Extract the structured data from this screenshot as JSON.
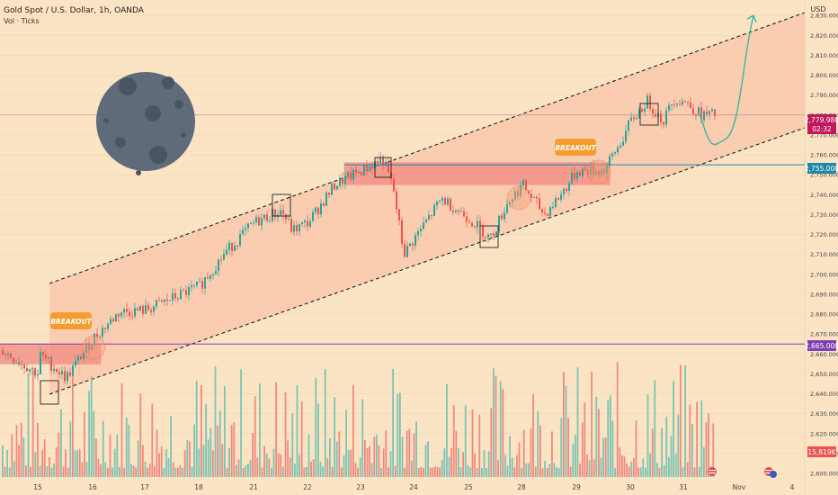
{
  "header": {
    "symbol_line": "Gold Spot / U.S. Dollar, 1h, OANDA",
    "volume_label": "Vol · Ticks"
  },
  "currency": "USD",
  "price_labels": {
    "last_price": "2,779.980",
    "countdown": "02:32",
    "resistance": "2,755.000",
    "support": "2,665.000",
    "volume_value": "15,819K"
  },
  "annotations": {
    "breakout_1": "BREAKOUT",
    "breakout_2": "BREAKOUT"
  },
  "colors": {
    "background": "#fbe4c4",
    "channel_fill": "#f9b9a0",
    "zone_fill": "#f28b82",
    "up_candle": "#26a69a",
    "down_candle": "#ef5350",
    "last_price": "#c2185b",
    "resistance_line": "#1e88a8",
    "support_line": "#7e3fb3",
    "badge": "#f59c2e",
    "moon": "#5f6b7a"
  },
  "chart_data": {
    "type": "candlestick",
    "title": "Gold Spot / U.S. Dollar, 1h, OANDA",
    "ylim": [
      2600,
      2840
    ],
    "y_ticks": [
      "2,830.000",
      "2,820.000",
      "2,810.000",
      "2,800.000",
      "2,790.000",
      "2,780.000",
      "2,770.000",
      "2,760.000",
      "2,750.000",
      "2,740.000",
      "2,730.000",
      "2,720.000",
      "2,710.000",
      "2,700.000",
      "2,690.000",
      "2,680.000",
      "2,670.000",
      "2,660.000",
      "2,650.000",
      "2,640.000",
      "2,630.000",
      "2,620.000",
      "2,610.000",
      "2,600.000"
    ],
    "x_ticks": [
      "15",
      "16",
      "17",
      "18",
      "21",
      "22",
      "23",
      "24",
      "25",
      "28",
      "29",
      "30",
      "31",
      "Nov",
      "4"
    ],
    "last_price": 2779.98,
    "horizontal_levels": [
      {
        "name": "resistance",
        "value": 2755
      },
      {
        "name": "support",
        "value": 2665
      }
    ],
    "price_path": [
      {
        "x": "15",
        "y": 2660
      },
      {
        "x": "15.5",
        "y": 2648
      },
      {
        "x": "16",
        "y": 2668
      },
      {
        "x": "16.5",
        "y": 2681
      },
      {
        "x": "17",
        "y": 2682
      },
      {
        "x": "18",
        "y": 2694
      },
      {
        "x": "18.5",
        "y": 2712
      },
      {
        "x": "21",
        "y": 2726
      },
      {
        "x": "21.5",
        "y": 2732
      },
      {
        "x": "21.7",
        "y": 2722
      },
      {
        "x": "22",
        "y": 2726
      },
      {
        "x": "22.5",
        "y": 2745
      },
      {
        "x": "23",
        "y": 2752
      },
      {
        "x": "23.4",
        "y": 2758
      },
      {
        "x": "23.6",
        "y": 2743
      },
      {
        "x": "23.8",
        "y": 2710
      },
      {
        "x": "24",
        "y": 2718
      },
      {
        "x": "24.5",
        "y": 2738
      },
      {
        "x": "25",
        "y": 2728
      },
      {
        "x": "25.4",
        "y": 2718
      },
      {
        "x": "25.7",
        "y": 2735
      },
      {
        "x": "28",
        "y": 2745
      },
      {
        "x": "28.4",
        "y": 2730
      },
      {
        "x": "28.7",
        "y": 2740
      },
      {
        "x": "29",
        "y": 2752
      },
      {
        "x": "29.5",
        "y": 2752
      },
      {
        "x": "29.8",
        "y": 2766
      },
      {
        "x": "30",
        "y": 2777
      },
      {
        "x": "30.3",
        "y": 2787
      },
      {
        "x": "30.6",
        "y": 2777
      },
      {
        "x": "30.8",
        "y": 2788
      },
      {
        "x": "31",
        "y": 2787
      },
      {
        "x": "31.3",
        "y": 2780
      }
    ],
    "projection_path": [
      {
        "x": "31.3",
        "y": 2780
      },
      {
        "x": "31.6",
        "y": 2768
      },
      {
        "x": "31.9",
        "y": 2790
      },
      {
        "x": "Nov",
        "y": 2830
      }
    ]
  }
}
